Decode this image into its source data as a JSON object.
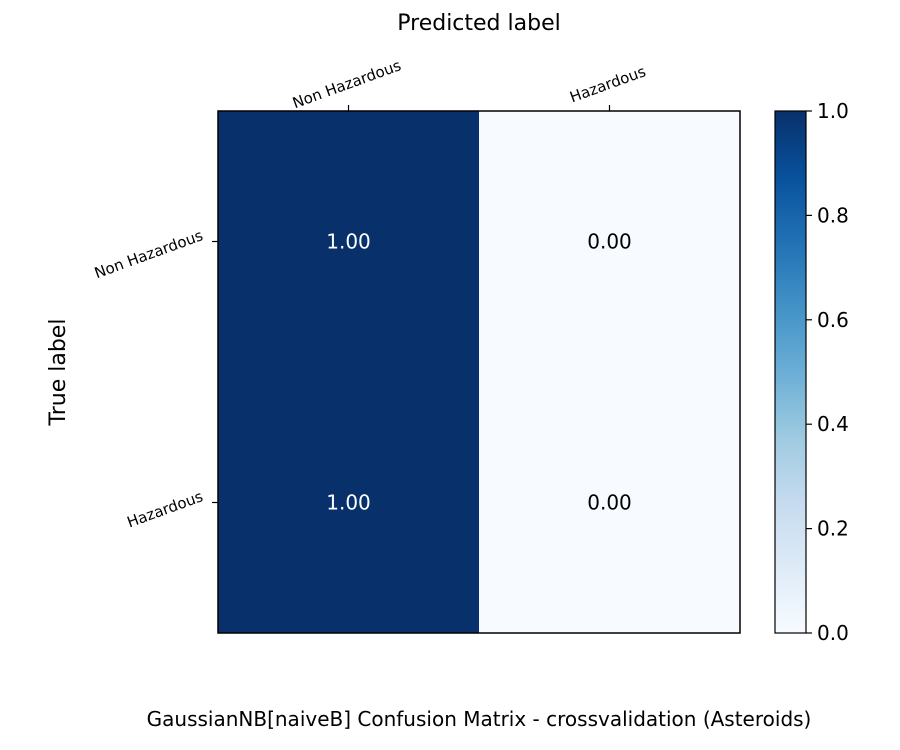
{
  "chart_data": {
    "type": "heatmap",
    "title": "GaussianNB[naiveB] Confusion Matrix - crossvalidation (Asteroids)",
    "xlabel": "Predicted label",
    "ylabel": "True label",
    "x_categories": [
      "Non Hazardous",
      "Hazardous"
    ],
    "y_categories": [
      "Non Hazardous",
      "Hazardous"
    ],
    "values": [
      [
        1.0,
        0.0
      ],
      [
        1.0,
        0.0
      ]
    ],
    "cell_labels": [
      [
        "1.00",
        "0.00"
      ],
      [
        "1.00",
        "0.00"
      ]
    ],
    "colormap": "Blues",
    "color_min": "#f7fbff",
    "color_max": "#08306b",
    "vmin": 0.0,
    "vmax": 1.0,
    "colorbar_ticks": [
      "0.0",
      "0.2",
      "0.4",
      "0.6",
      "0.8",
      "1.0"
    ],
    "grid": false
  }
}
